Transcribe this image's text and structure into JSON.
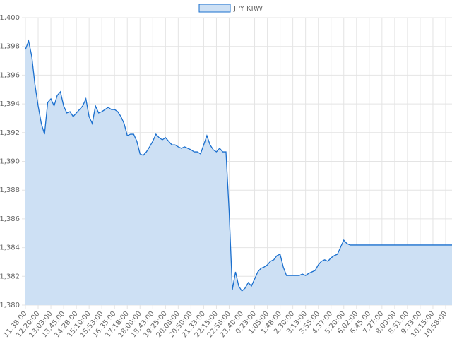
{
  "chart_data": {
    "type": "line",
    "legend": "top",
    "grid": true,
    "series": [
      {
        "name": "JPY KRW",
        "color": "#1a6fce",
        "fill": "#cde0f4",
        "values": [
          1397.79,
          1398.38,
          1397.3,
          1395.33,
          1393.86,
          1392.63,
          1391.89,
          1394.1,
          1394.35,
          1393.86,
          1394.59,
          1394.84,
          1393.86,
          1393.37,
          1393.46,
          1393.12,
          1393.37,
          1393.61,
          1393.86,
          1394.35,
          1393.12,
          1392.63,
          1393.86,
          1393.37,
          1393.46,
          1393.61,
          1393.76,
          1393.61,
          1393.61,
          1393.46,
          1393.12,
          1392.63,
          1391.79,
          1391.89,
          1391.89,
          1391.4,
          1390.52,
          1390.42,
          1390.66,
          1391.01,
          1391.4,
          1391.89,
          1391.65,
          1391.5,
          1391.65,
          1391.4,
          1391.15,
          1391.15,
          1391.01,
          1390.91,
          1391.01,
          1390.91,
          1390.81,
          1390.66,
          1390.66,
          1390.52,
          1391.15,
          1391.79,
          1391.15,
          1390.81,
          1390.66,
          1390.91,
          1390.66,
          1390.66,
          1386.49,
          1381.08,
          1382.31,
          1381.33,
          1380.98,
          1381.18,
          1381.57,
          1381.33,
          1381.82,
          1382.31,
          1382.56,
          1382.65,
          1382.8,
          1383.05,
          1383.15,
          1383.44,
          1383.54,
          1382.65,
          1382.06,
          1382.06,
          1382.06,
          1382.06,
          1382.06,
          1382.16,
          1382.06,
          1382.21,
          1382.31,
          1382.41,
          1382.8,
          1383.05,
          1383.15,
          1383.05,
          1383.29,
          1383.44,
          1383.54,
          1384.03,
          1384.52,
          1384.28,
          1384.18,
          1384.18,
          1384.18,
          1384.18,
          1384.18,
          1384.18,
          1384.18,
          1384.18,
          1384.18,
          1384.18,
          1384.18,
          1384.18,
          1384.18,
          1384.18,
          1384.18,
          1384.18,
          1384.18,
          1384.18,
          1384.18,
          1384.18,
          1384.18,
          1384.18,
          1384.18,
          1384.18,
          1384.18,
          1384.18,
          1384.18,
          1384.18,
          1384.18,
          1384.18,
          1384.18,
          1384.18,
          1384.18
        ]
      }
    ],
    "categories": [
      "11:38:00",
      null,
      null,
      null,
      "12:20:00",
      null,
      null,
      null,
      "13:03:00",
      null,
      null,
      null,
      "13:45:00",
      null,
      null,
      null,
      "14:28:00",
      null,
      null,
      null,
      "15:10:00",
      null,
      null,
      null,
      "15:53:00",
      null,
      null,
      null,
      "16:35:00",
      null,
      null,
      null,
      "17:18:00",
      null,
      null,
      null,
      "18:00:00",
      null,
      null,
      null,
      "18:43:00",
      null,
      null,
      null,
      "19:25:00",
      null,
      null,
      null,
      "20:08:00",
      null,
      null,
      null,
      "20:50:00",
      null,
      null,
      null,
      "21:33:00",
      null,
      null,
      null,
      "22:15:00",
      null,
      null,
      null,
      "22:58:00",
      null,
      null,
      null,
      "23:40:00",
      null,
      null,
      null,
      "0:23:00",
      null,
      null,
      null,
      "1:05:00",
      null,
      null,
      null,
      "1:48:00",
      null,
      null,
      null,
      "2:30:00",
      null,
      null,
      null,
      "3:13:00",
      null,
      null,
      null,
      "3:55:00",
      null,
      null,
      null,
      "4:37:00",
      null,
      null,
      null,
      "5:20:00",
      null,
      null,
      null,
      "6:02:00",
      null,
      null,
      null,
      "6:45:00",
      null,
      null,
      null,
      "7:27:00",
      null,
      null,
      null,
      "8:09:00",
      null,
      null,
      null,
      "8:51:00",
      null,
      null,
      null,
      "9:33:00",
      null,
      null,
      null,
      "10:15:00",
      null,
      null,
      null,
      "10:58:00",
      null,
      null
    ],
    "ylim": [
      1380,
      1400
    ],
    "yticks": [
      {
        "value": 1380,
        "label": "1,380"
      },
      {
        "value": 1382,
        "label": "1,382"
      },
      {
        "value": 1384,
        "label": "1,384"
      },
      {
        "value": 1386,
        "label": "1,386"
      },
      {
        "value": 1388,
        "label": "1,388"
      },
      {
        "value": 1390,
        "label": "1,390"
      },
      {
        "value": 1392,
        "label": "1,392"
      },
      {
        "value": 1394,
        "label": "1,394"
      },
      {
        "value": 1396,
        "label": "1,396"
      },
      {
        "value": 1398,
        "label": "1,398"
      },
      {
        "value": 1400,
        "label": "1,400"
      }
    ]
  }
}
